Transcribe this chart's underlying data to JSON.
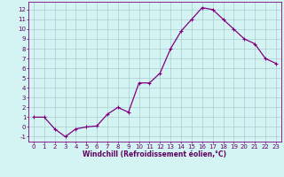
{
  "x": [
    0,
    1,
    2,
    3,
    4,
    5,
    6,
    7,
    8,
    9,
    10,
    11,
    12,
    13,
    14,
    15,
    16,
    17,
    18,
    19,
    20,
    21,
    22,
    23
  ],
  "y": [
    1,
    1,
    -0.2,
    -1,
    -0.2,
    0,
    0.1,
    1.3,
    2,
    1.5,
    4.5,
    4.5,
    5.5,
    8,
    9.8,
    11,
    12.2,
    12,
    11,
    10,
    9,
    8.5,
    7,
    6.5
  ],
  "line_color": "#800080",
  "marker": "+",
  "markersize": 3,
  "linewidth": 0.9,
  "bg_color": "#d4f4f4",
  "grid_color": "#aacccc",
  "xlabel": "Windchill (Refroidissement éolien,°C)",
  "xlabel_fontsize": 5.5,
  "tick_fontsize": 5,
  "ylim": [
    -1.5,
    12.8
  ],
  "xlim": [
    -0.5,
    23.5
  ],
  "yticks": [
    -1,
    0,
    1,
    2,
    3,
    4,
    5,
    6,
    7,
    8,
    9,
    10,
    11,
    12
  ],
  "xticks": [
    0,
    1,
    2,
    3,
    4,
    5,
    6,
    7,
    8,
    9,
    10,
    11,
    12,
    13,
    14,
    15,
    16,
    17,
    18,
    19,
    20,
    21,
    22,
    23
  ],
  "spine_color": "#800080",
  "label_color": "#600060"
}
